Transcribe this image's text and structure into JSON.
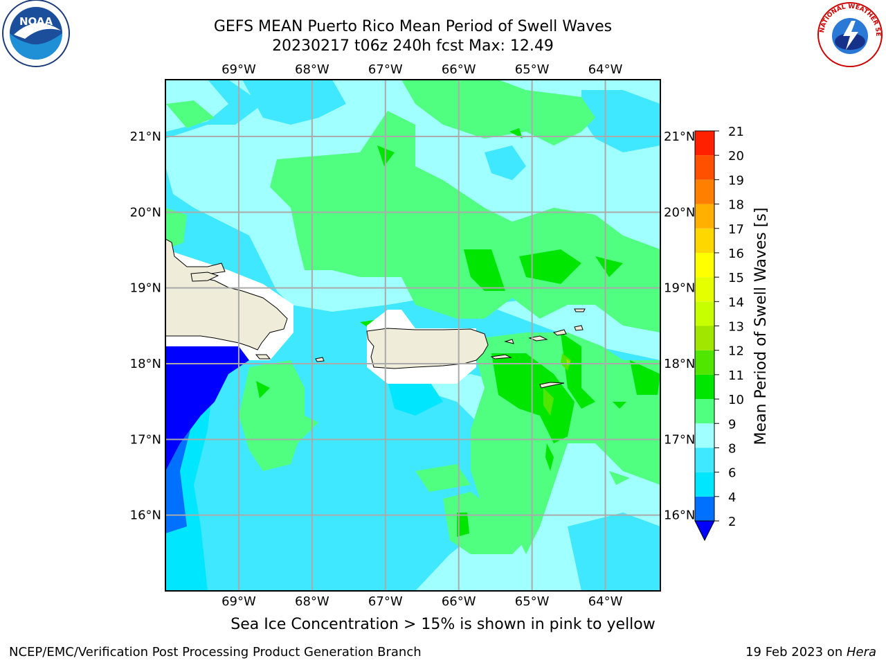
{
  "header": {
    "title_line1": "GEFS MEAN Puerto Rico Mean Period of Swell Waves",
    "title_line2": "20230217 t06z 240h fcst   Max: 12.49"
  },
  "logos": {
    "left": "NOAA",
    "left_ring_text": "NATIONAL OCEANIC AND ATMOSPHERIC ADMINISTRATION · U.S. DEPARTMENT OF COMMERCE",
    "right_ring_text": "NATIONAL WEATHER SERVICE"
  },
  "map": {
    "lon_ticks": [
      "69°W",
      "68°W",
      "67°W",
      "66°W",
      "65°W",
      "64°W"
    ],
    "lat_ticks": [
      "21°N",
      "20°N",
      "19°N",
      "18°N",
      "17°N",
      "16°N"
    ],
    "lon_range": [
      -70.0,
      -63.25
    ],
    "lat_range": [
      15.0,
      21.75
    ]
  },
  "colorbar": {
    "label": "Mean Period of Swell Waves [s]",
    "levels": [
      "2",
      "4",
      "6",
      "8",
      "9",
      "10",
      "11",
      "12",
      "13",
      "14",
      "15",
      "16",
      "17",
      "18",
      "19",
      "20",
      "21"
    ],
    "colors": [
      "#0000ff",
      "#0070ff",
      "#00e6ff",
      "#40e8ff",
      "#a0ffff",
      "#50ff80",
      "#00e600",
      "#50e600",
      "#a0e600",
      "#c8ff00",
      "#e6ff00",
      "#ffff00",
      "#ffd700",
      "#ffb000",
      "#ff8000",
      "#ff5000",
      "#ff2000",
      "#ff0000"
    ]
  },
  "caption": "Sea Ice Concentration > 15% is shown in pink to yellow",
  "footer": {
    "left": "NCEP/EMC/Verification Post Processing Product Generation Branch",
    "right_date": "19 Feb 2023 on ",
    "right_host": "Hera"
  }
}
